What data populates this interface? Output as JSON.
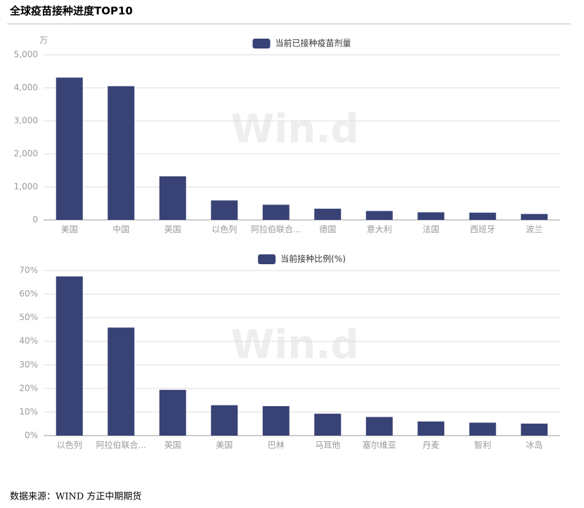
{
  "header": {
    "title": "全球疫苗接种进度TOP10"
  },
  "watermark": "Win.d",
  "chart_data": [
    {
      "type": "bar",
      "legend": "当前已接种疫苗剂量",
      "y_unit": "万",
      "color": "#384275",
      "categories": [
        "美国",
        "中国",
        "英国",
        "以色列",
        "阿拉伯联合...",
        "德国",
        "意大利",
        "法国",
        "西班牙",
        "波兰"
      ],
      "values": [
        4310,
        4050,
        1320,
        590,
        460,
        340,
        270,
        230,
        220,
        180
      ],
      "ylim": [
        0,
        5000
      ],
      "yticks": [
        0,
        {
          "value": 1000,
          "label": "1,000"
        },
        {
          "value": 2000,
          "label": "2,000"
        },
        {
          "value": 3000,
          "label": "3,000"
        },
        {
          "value": 4000,
          "label": "4,000"
        },
        {
          "value": 5000,
          "label": "5,000"
        }
      ],
      "grid": true
    },
    {
      "type": "bar",
      "legend": "当前接种比例(%)",
      "color": "#384275",
      "categories": [
        "以色列",
        "阿拉伯联合...",
        "英国",
        "美国",
        "巴林",
        "马耳他",
        "塞尔维亚",
        "丹麦",
        "智利",
        "冰岛"
      ],
      "values": [
        67.5,
        45.8,
        19.4,
        12.9,
        12.5,
        9.3,
        7.9,
        6.0,
        5.5,
        5.1
      ],
      "ylim": [
        0,
        70
      ],
      "yticks": [
        {
          "value": 0,
          "label": "0%"
        },
        {
          "value": 10,
          "label": "10%"
        },
        {
          "value": 20,
          "label": "20%"
        },
        {
          "value": 30,
          "label": "30%"
        },
        {
          "value": 40,
          "label": "40%"
        },
        {
          "value": 50,
          "label": "50%"
        },
        {
          "value": 60,
          "label": "60%"
        },
        {
          "value": 70,
          "label": "70%"
        }
      ],
      "grid": true
    }
  ],
  "footer": {
    "source": "数据来源：WIND  方正中期期货"
  }
}
